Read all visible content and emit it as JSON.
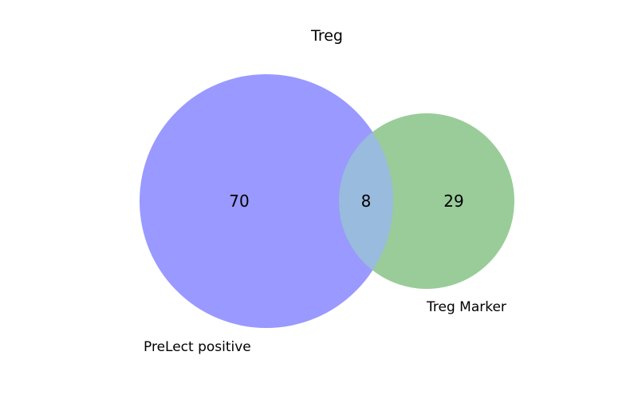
{
  "title": "Treg",
  "sets": [
    {
      "label": "PreLect positive",
      "only_count": "70",
      "color": "#9999ff"
    },
    {
      "label": "Treg Marker",
      "only_count": "29",
      "color": "#99cc99"
    }
  ],
  "intersection": {
    "count": "8",
    "color": "#99bbdd"
  }
}
